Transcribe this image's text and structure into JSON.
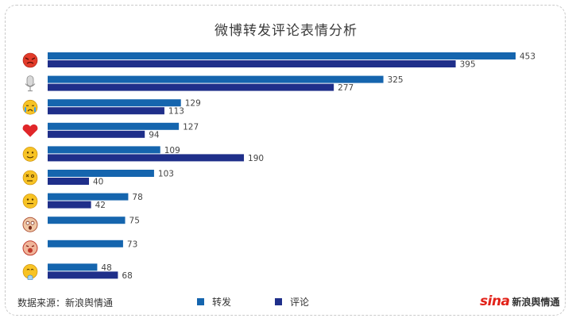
{
  "chart_data": {
    "type": "bar",
    "orientation": "horizontal",
    "title": "微博转发评论表情分析",
    "categories": [
      "angry-face",
      "microphone",
      "crying-face",
      "red-heart",
      "smile-face",
      "dizzy-face",
      "grin-face",
      "shocked-doge-face",
      "shouting-face",
      "praying-face"
    ],
    "series": [
      {
        "name": "转发",
        "color": "#1565ae",
        "values": [
          453,
          325,
          129,
          127,
          109,
          103,
          78,
          75,
          73,
          48
        ]
      },
      {
        "name": "评论",
        "color": "#1f2f8a",
        "values": [
          395,
          277,
          113,
          94,
          190,
          40,
          42,
          null,
          null,
          68
        ]
      }
    ],
    "xlim": [
      0,
      453
    ],
    "grid": false,
    "legend_position": "bottom"
  },
  "footer": {
    "source": "数据来源：新浪舆情通",
    "logo_sina": "sina",
    "logo_text": "新浪舆情通"
  }
}
